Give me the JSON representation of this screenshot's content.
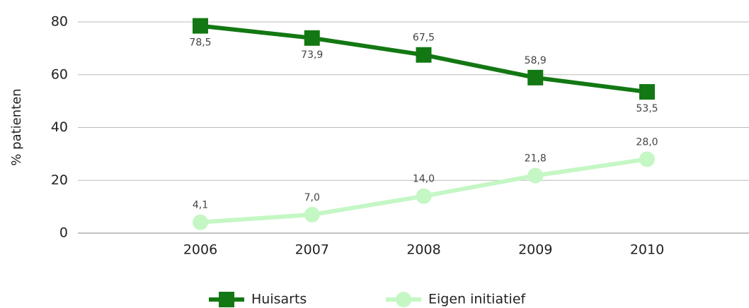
{
  "chart_data": {
    "type": "line",
    "y_label": "% patienten",
    "categories": [
      "2006",
      "2007",
      "2008",
      "2009",
      "2010"
    ],
    "series": [
      {
        "name": "Huisarts",
        "color": "#137813",
        "marker": "square",
        "values": [
          78.5,
          73.9,
          67.5,
          58.9,
          53.5
        ],
        "value_labels": [
          "78,5",
          "73,9",
          "67,5",
          "58,9",
          "53,5"
        ]
      },
      {
        "name": "Eigen initiatief",
        "color": "#c4f7c4",
        "marker": "circle",
        "values": [
          4.1,
          7.0,
          14.0,
          21.8,
          28.0
        ],
        "value_labels": [
          "4,1",
          "7,0",
          "14,0",
          "21,8",
          "28,0"
        ]
      }
    ],
    "ylim": [
      0,
      80
    ],
    "yticks": [
      0,
      20,
      40,
      60,
      80
    ],
    "grid": true
  }
}
